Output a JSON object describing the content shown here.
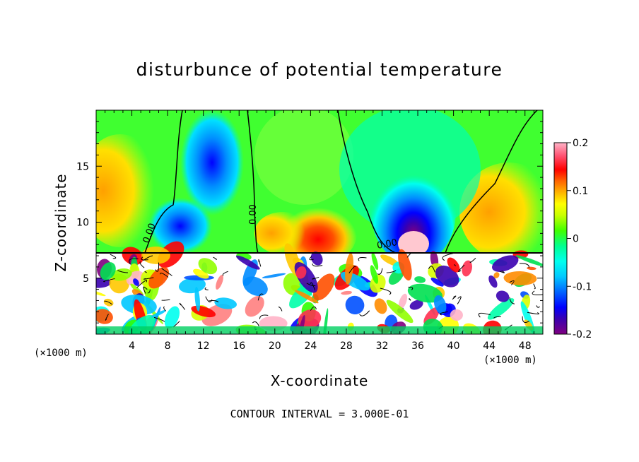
{
  "chart_data": {
    "type": "heatmap",
    "title": "disturbunce of potential temperature",
    "xlabel": "X-coordinate",
    "ylabel": "Z-coordinate",
    "x_unit": "(×1000 m)",
    "z_unit": "(×1000 m)",
    "xlim": [
      0,
      50
    ],
    "ylim": [
      0,
      20
    ],
    "x_ticks": [
      4,
      8,
      12,
      16,
      20,
      24,
      28,
      32,
      36,
      40,
      44,
      48
    ],
    "y_ticks": [
      5,
      10,
      15
    ],
    "colorbar": {
      "range": [
        -0.2,
        0.2
      ],
      "ticks": [
        "0.2",
        "0.1",
        "0",
        "-0.1",
        "-0.2"
      ],
      "colors": [
        "#800080",
        "#3a00b0",
        "#0000ff",
        "#0050ff",
        "#008cff",
        "#00c8ff",
        "#00ffee",
        "#00ffaa",
        "#00e050",
        "#30ff00",
        "#90ff00",
        "#d8ff00",
        "#ffff00",
        "#ffc800",
        "#ff8c00",
        "#ff5000",
        "#ff0000",
        "#ff3050",
        "#ff8080",
        "#ffb4c8"
      ]
    },
    "contour_labels": [
      "0.00",
      "0.00",
      "0.00"
    ],
    "contour_interval": "CONTOUR INTERVAL = 3.000E-01"
  }
}
